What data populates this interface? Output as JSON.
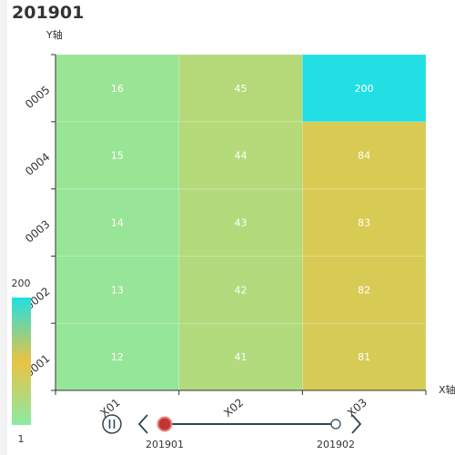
{
  "chart_data": {
    "type": "heatmap",
    "title": "201901",
    "xlabel": "X轴",
    "ylabel": "Y轴",
    "x_categories": [
      "X01",
      "X02",
      "X03"
    ],
    "y_categories": [
      "0001",
      "0002",
      "0003",
      "0004",
      "0005"
    ],
    "cells": [
      {
        "x": "X01",
        "y": "0001",
        "value": 12
      },
      {
        "x": "X01",
        "y": "0002",
        "value": 13
      },
      {
        "x": "X01",
        "y": "0003",
        "value": 14
      },
      {
        "x": "X01",
        "y": "0004",
        "value": 15
      },
      {
        "x": "X01",
        "y": "0005",
        "value": 16
      },
      {
        "x": "X02",
        "y": "0001",
        "value": 41
      },
      {
        "x": "X02",
        "y": "0002",
        "value": 42
      },
      {
        "x": "X02",
        "y": "0003",
        "value": 43
      },
      {
        "x": "X02",
        "y": "0004",
        "value": 44
      },
      {
        "x": "X02",
        "y": "0005",
        "value": 45
      },
      {
        "x": "X03",
        "y": "0001",
        "value": 81
      },
      {
        "x": "X03",
        "y": "0002",
        "value": 82
      },
      {
        "x": "X03",
        "y": "0003",
        "value": 83
      },
      {
        "x": "X03",
        "y": "0004",
        "value": 84
      },
      {
        "x": "X03",
        "y": "0005",
        "value": 200
      }
    ],
    "visual_map": {
      "min": 1,
      "max": 200,
      "min_label": "1",
      "max_label": "200",
      "colors": [
        "#8ceaa4",
        "#e8c443",
        "#21dfe3"
      ]
    },
    "timeline": {
      "items": [
        "201901",
        "201902"
      ],
      "current": "201901",
      "play_icon": "pause-icon",
      "prev_icon": "chevron-left-icon",
      "next_icon": "chevron-right-icon"
    }
  }
}
